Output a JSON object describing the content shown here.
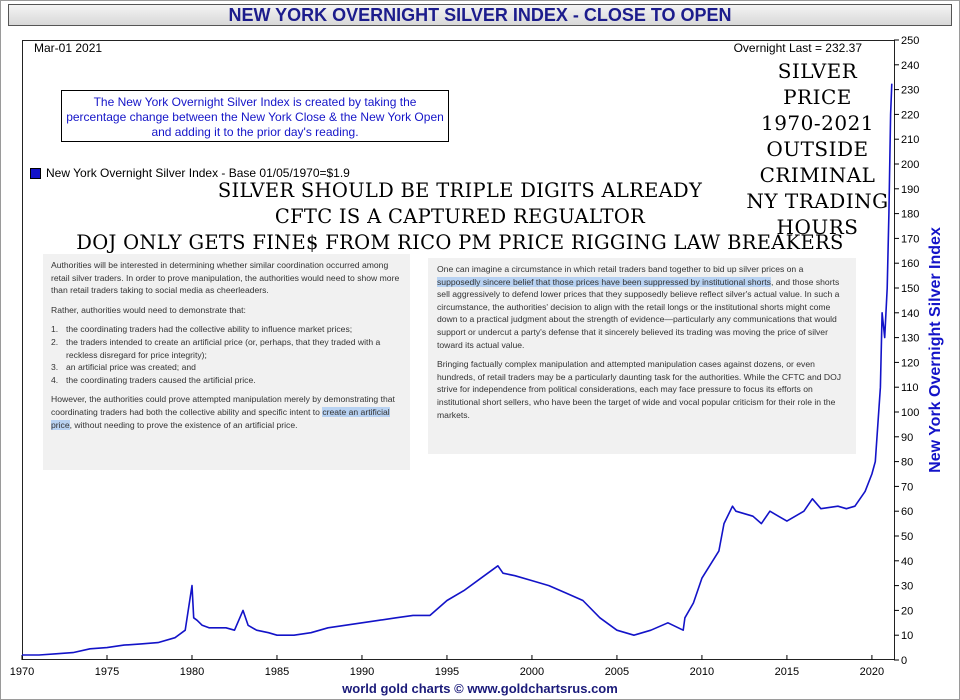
{
  "header": {
    "title": "NEW YORK OVERNIGHT SILVER INDEX - CLOSE TO OPEN"
  },
  "chart_info": {
    "date": "Mar-01  2021",
    "last_value": "Overnight Last = 232.37",
    "description": "The New York Overnight Silver Index is created by taking the percentage change between the New York Close & the New York Open and adding it to the prior day's reading.",
    "legend_label": "New York Overnight Silver Index - Base 01/05/1970=$1.9"
  },
  "annotations": {
    "right": [
      "SILVER PRICE",
      "1970-2021",
      "OUTSIDE",
      "CRIMINAL",
      "NY TRADING",
      "HOURS"
    ],
    "center": [
      "SILVER SHOULD BE TRIPLE DIGITS ALREADY",
      "CFTC IS A CAPTURED REGUALTOR",
      "DOJ ONLY GETS FINE$ FROM RICO PM PRICE RIGGING LAW BREAKERS"
    ]
  },
  "doc_left": {
    "intro": "Authorities will be interested in determining whether similar coordination occurred among retail silver traders. In order to prove manipulation, the authorities would need to show more than retail traders taking to social media as cheerleaders.",
    "lead": "Rather, authorities would need to demonstrate that:",
    "items": [
      {
        "num": "1.",
        "text": "the coordinating traders had the collective ability to influence market prices;"
      },
      {
        "num": "2.",
        "text": "the traders intended to create an artificial price (or, perhaps, that they traded with a reckless disregard for price integrity);"
      },
      {
        "num": "3.",
        "text": "an artificial price was created; and"
      },
      {
        "num": "4.",
        "text": "the coordinating traders caused the artificial price."
      }
    ],
    "closing_a": "However, the authorities could prove attempted manipulation merely by demonstrating that coordinating traders had both the collective ability and specific intent to ",
    "closing_hl": "create an artificial price",
    "closing_b": ", without needing to prove the existence of an artificial price."
  },
  "doc_right": {
    "p1_a": "One can imagine a circumstance in which retail traders band together to bid up silver prices on a ",
    "p1_hl": "supposedly sincere belief that those prices have been suppressed by institutional shorts",
    "p1_b": ", and those shorts sell aggressively to defend lower prices that they supposedly believe reflect silver's actual value. In such a circumstance, the authorities' decision to align with the retail longs or the institutional shorts might come down to a practical judgment about the strength of evidence—particularly any communications that would support or undercut a party's defense that it sincerely believed its trading was moving the price of silver toward its actual value.",
    "p2": "Bringing factually complex manipulation and attempted manipulation cases against dozens, or even hundreds, of retail traders may be a particularly daunting task for the authorities. While the CFTC and DOJ strive for independence from political considerations, each may face pressure to focus its efforts on institutional short sellers, who have been the target of wide and vocal popular criticism for their role in the markets."
  },
  "footer": {
    "text": "world gold charts © www.goldchartsrus.com"
  },
  "colors": {
    "series": "#1313c8",
    "title_text": "#1c1c8c",
    "highlight": "#b8d2f2"
  },
  "chart_data": {
    "type": "line",
    "title": "NEW YORK OVERNIGHT SILVER INDEX - CLOSE TO OPEN",
    "ylabel": "New York Overnight Silver Index",
    "xlim": [
      1970,
      2021.3
    ],
    "ylim": [
      0,
      250
    ],
    "x_ticks": [
      1970,
      1975,
      1980,
      1985,
      1990,
      1995,
      2000,
      2005,
      2010,
      2015,
      2020
    ],
    "y_ticks": [
      0,
      10,
      20,
      30,
      40,
      50,
      60,
      70,
      80,
      90,
      100,
      110,
      120,
      130,
      140,
      150,
      160,
      170,
      180,
      190,
      200,
      210,
      220,
      230,
      240,
      250
    ],
    "y_axis_side": "right",
    "grid": false,
    "legend": "top-left",
    "series": [
      {
        "name": "New York Overnight Silver Index - Base 01/05/1970=$1.9",
        "x": [
          1970,
          1971,
          1972,
          1973,
          1974,
          1975,
          1976,
          1977,
          1978,
          1979,
          1979.6,
          1980.0,
          1980.1,
          1980.3,
          1980.6,
          1981,
          1982,
          1982.5,
          1983.0,
          1983.3,
          1983.8,
          1984.5,
          1985,
          1986,
          1987,
          1988,
          1989,
          1990,
          1991,
          1992,
          1993,
          1994,
          1995,
          1996,
          1997,
          1998,
          1998.3,
          1999,
          2000,
          2001,
          2002,
          2003,
          2004,
          2005,
          2006,
          2007,
          2008,
          2008.9,
          2009,
          2009.5,
          2010,
          2011,
          2011.3,
          2011.8,
          2012,
          2013,
          2013.5,
          2014,
          2014.5,
          2015,
          2016,
          2016.5,
          2017,
          2018,
          2018.5,
          2019,
          2019.6,
          2020,
          2020.2,
          2020.5,
          2020.6,
          2020.75,
          2020.9,
          2021.0,
          2021.1,
          2021.17
        ],
        "y": [
          2,
          2,
          2.5,
          3,
          4.5,
          5,
          6,
          6.5,
          7,
          9,
          12,
          30,
          17,
          16,
          14,
          13,
          13,
          12,
          20,
          14,
          12,
          11,
          10,
          10,
          11,
          13,
          14,
          15,
          16,
          17,
          18,
          18,
          24,
          28,
          33,
          38,
          35,
          34,
          32,
          30,
          27,
          24,
          17,
          12,
          10,
          12,
          15,
          12,
          17,
          23,
          33,
          44,
          55,
          62,
          60,
          58,
          55,
          60,
          58,
          56,
          60,
          65,
          61,
          62,
          61,
          62,
          68,
          75,
          80,
          110,
          140,
          130,
          150,
          180,
          220,
          232.37
        ]
      }
    ]
  }
}
